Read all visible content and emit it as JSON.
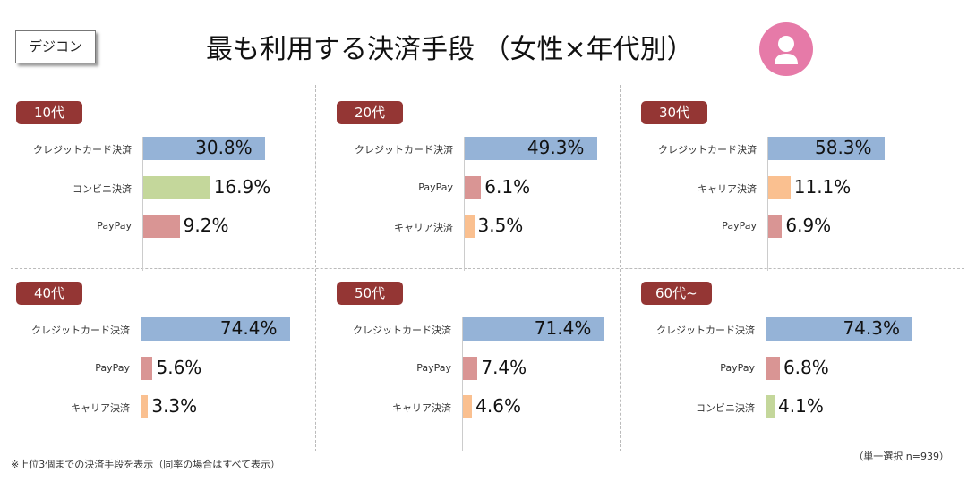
{
  "header": {
    "tag": "デジコン",
    "title": "最も利用する決済手段 （女性×年代別）",
    "avatar_icon": "woman-icon"
  },
  "colors": {
    "クレジットカード決済": "#95b3d7",
    "コンビニ決済": "#c4d79b",
    "PayPay": "#d99594",
    "キャリア決済": "#fac090",
    "age_tag": "#943634"
  },
  "chart_data": [
    {
      "type": "bar",
      "title": "10代",
      "categories": [
        "クレジットカード決済",
        "コンビニ決済",
        "PayPay"
      ],
      "values": [
        30.8,
        16.9,
        9.2
      ],
      "labels": [
        "30.8%",
        "16.9%",
        "9.2%"
      ]
    },
    {
      "type": "bar",
      "title": "20代",
      "categories": [
        "クレジットカード決済",
        "PayPay",
        "キャリア決済"
      ],
      "values": [
        49.3,
        6.1,
        3.5
      ],
      "labels": [
        "49.3%",
        "6.1%",
        "3.5%"
      ]
    },
    {
      "type": "bar",
      "title": "30代",
      "categories": [
        "クレジットカード決済",
        "キャリア決済",
        "PayPay"
      ],
      "values": [
        58.3,
        11.1,
        6.9
      ],
      "labels": [
        "58.3%",
        "11.1%",
        "6.9%"
      ]
    },
    {
      "type": "bar",
      "title": "40代",
      "categories": [
        "クレジットカード決済",
        "PayPay",
        "キャリア決済"
      ],
      "values": [
        74.4,
        5.6,
        3.3
      ],
      "labels": [
        "74.4%",
        "5.6%",
        "3.3%"
      ]
    },
    {
      "type": "bar",
      "title": "50代",
      "categories": [
        "クレジットカード決済",
        "PayPay",
        "キャリア決済"
      ],
      "values": [
        71.4,
        7.4,
        4.6
      ],
      "labels": [
        "71.4%",
        "7.4%",
        "4.6%"
      ]
    },
    {
      "type": "bar",
      "title": "60代~",
      "categories": [
        "クレジットカード決済",
        "PayPay",
        "コンビニ決済"
      ],
      "values": [
        74.3,
        6.8,
        4.1
      ],
      "labels": [
        "74.3%",
        "6.8%",
        "4.1%"
      ]
    }
  ],
  "footer": {
    "note": "※上位3個までの決済手段を表示（同率の場合はすべて表示）",
    "sample": "（単一選択 n=939）"
  }
}
